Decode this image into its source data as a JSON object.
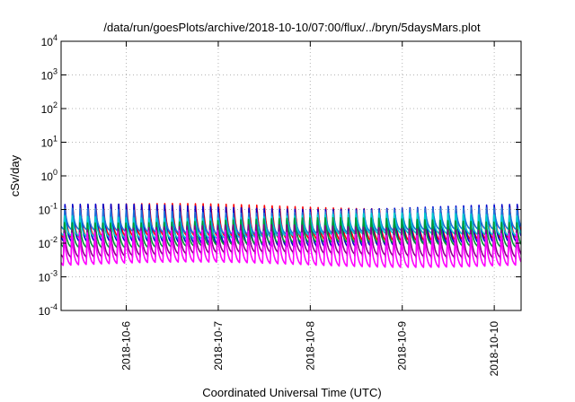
{
  "chart_data": {
    "type": "line",
    "title": "/data/run/goesPlots/archive/2018-10-10/07:00/flux/../bryn/5daysMars.plot",
    "xlabel": "Coordinated Universal Time (UTC)",
    "ylabel": "cSv/day",
    "yscale": "log",
    "ylim": [
      0.0001,
      10000
    ],
    "xlim": [
      "2018-10-05T07:00",
      "2018-10-10T07:00"
    ],
    "grid": true,
    "legend": "none",
    "y_ticks": [
      {
        "base": "10",
        "exp": "-4",
        "value": 0.0001
      },
      {
        "base": "10",
        "exp": "-3",
        "value": 0.001
      },
      {
        "base": "10",
        "exp": "-2",
        "value": 0.01
      },
      {
        "base": "10",
        "exp": "-1",
        "value": 0.1
      },
      {
        "base": "10",
        "exp": "0",
        "value": 1
      },
      {
        "base": "10",
        "exp": "1",
        "value": 10
      },
      {
        "base": "10",
        "exp": "2",
        "value": 100
      },
      {
        "base": "10",
        "exp": "3",
        "value": 1000
      },
      {
        "base": "10",
        "exp": "4",
        "value": 10000
      }
    ],
    "x_ticks": [
      {
        "label": "2018-10-6",
        "value": "2018-10-06T00:00"
      },
      {
        "label": "2018-10-7",
        "value": "2018-10-07T00:00"
      },
      {
        "label": "2018-10-8",
        "value": "2018-10-08T00:00"
      },
      {
        "label": "2018-10-9",
        "value": "2018-10-09T00:00"
      },
      {
        "label": "2018-10-10",
        "value": "2018-10-10T00:00"
      }
    ],
    "periodic_pattern": {
      "period_hours": 2.0,
      "description_values_per_cycle": "rise at start of each cycle then exponential decay"
    },
    "series": [
      {
        "color": "#ff0000",
        "peak": 0.13,
        "trough": 0.012
      },
      {
        "color": "#0000cc",
        "peak": 0.12,
        "trough": 0.008
      },
      {
        "color": "#1e6fd9",
        "peak": 0.1,
        "trough": 0.02
      },
      {
        "color": "#00cccc",
        "peak": 0.07,
        "trough": 0.015
      },
      {
        "color": "#009933",
        "peak": 0.05,
        "trough": 0.008
      },
      {
        "color": "#8b008b",
        "peak": 0.03,
        "trough": 0.004
      },
      {
        "color": "#ff00ff",
        "peak": 0.02,
        "trough": 0.002
      }
    ]
  }
}
